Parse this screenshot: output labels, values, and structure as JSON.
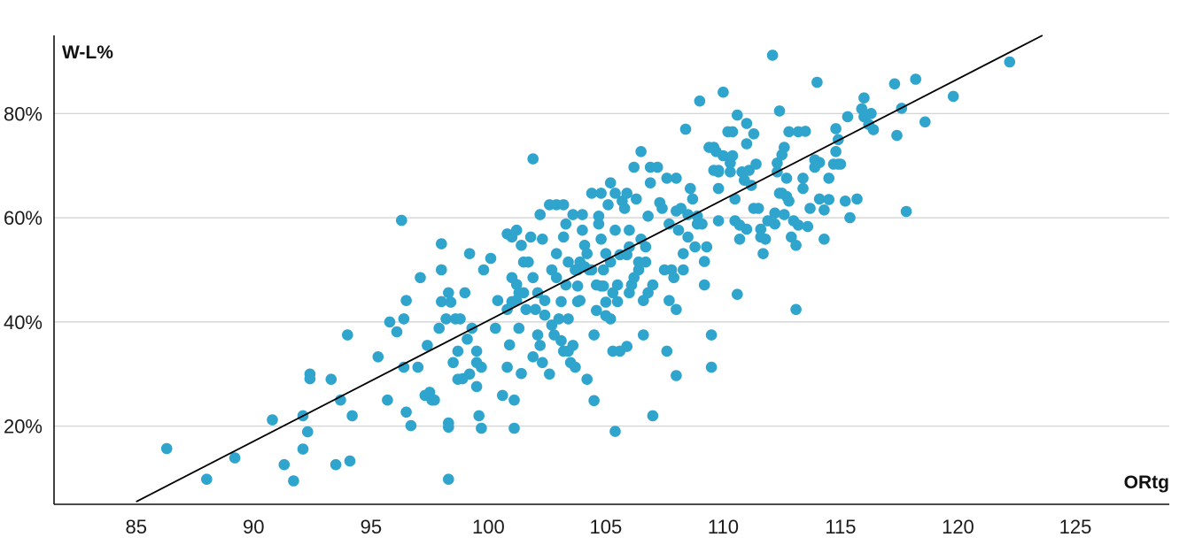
{
  "chart_data": {
    "type": "scatter",
    "xlabel": "ORtg",
    "ylabel": "W-L%",
    "xlim": [
      81.5,
      129
    ],
    "ylim": [
      5,
      95
    ],
    "x_ticks": [
      85,
      90,
      95,
      100,
      105,
      110,
      115,
      120,
      125
    ],
    "y_ticks": [
      20,
      40,
      60,
      80
    ],
    "y_tick_format": "{v}%",
    "grid": "horizontal",
    "point_color": "#2fa4cc",
    "line_color": "#000000",
    "trend_line": {
      "from": [
        85,
        5.5
      ],
      "to": [
        123.6,
        95
      ]
    },
    "points": [
      [
        86.3,
        15.7
      ],
      [
        88.0,
        9.8
      ],
      [
        89.2,
        13.9
      ],
      [
        90.8,
        21.2
      ],
      [
        91.3,
        12.6
      ],
      [
        91.7,
        9.5
      ],
      [
        92.1,
        15.6
      ],
      [
        92.1,
        22.0
      ],
      [
        92.3,
        18.9
      ],
      [
        92.4,
        30.0
      ],
      [
        92.4,
        29.1
      ],
      [
        93.3,
        29.0
      ],
      [
        93.5,
        12.6
      ],
      [
        93.7,
        25.0
      ],
      [
        94.0,
        37.5
      ],
      [
        94.1,
        13.3
      ],
      [
        94.2,
        22.0
      ],
      [
        95.3,
        33.3
      ],
      [
        95.7,
        25.0
      ],
      [
        95.8,
        40.0
      ],
      [
        96.1,
        38.1
      ],
      [
        96.3,
        59.5
      ],
      [
        96.4,
        31.3
      ],
      [
        96.4,
        40.6
      ],
      [
        96.5,
        22.7
      ],
      [
        96.5,
        44.1
      ],
      [
        96.7,
        20.1
      ],
      [
        97.0,
        31.3
      ],
      [
        97.1,
        48.5
      ],
      [
        97.3,
        25.9
      ],
      [
        97.4,
        35.5
      ],
      [
        97.5,
        26.5
      ],
      [
        97.6,
        25.0
      ],
      [
        97.7,
        25.0
      ],
      [
        97.9,
        38.8
      ],
      [
        98.0,
        43.9
      ],
      [
        98.0,
        55.0
      ],
      [
        98.0,
        50.0
      ],
      [
        98.2,
        40.6
      ],
      [
        98.3,
        20.6
      ],
      [
        98.3,
        19.8
      ],
      [
        98.3,
        45.6
      ],
      [
        98.3,
        9.8
      ],
      [
        98.4,
        43.8
      ],
      [
        98.5,
        32.2
      ],
      [
        98.6,
        40.6
      ],
      [
        98.7,
        29.0
      ],
      [
        98.7,
        34.4
      ],
      [
        98.8,
        40.6
      ],
      [
        98.9,
        29.1
      ],
      [
        99.0,
        45.6
      ],
      [
        99.1,
        36.7
      ],
      [
        99.2,
        53.1
      ],
      [
        99.2,
        30.0
      ],
      [
        99.3,
        38.8
      ],
      [
        99.5,
        34.4
      ],
      [
        99.5,
        27.6
      ],
      [
        99.5,
        32.2
      ],
      [
        99.6,
        22.0
      ],
      [
        99.7,
        31.3
      ],
      [
        99.7,
        19.6
      ],
      [
        99.8,
        50.0
      ],
      [
        100.1,
        52.2
      ],
      [
        100.3,
        38.8
      ],
      [
        100.4,
        44.1
      ],
      [
        100.6,
        25.9
      ],
      [
        100.8,
        42.4
      ],
      [
        100.8,
        56.9
      ],
      [
        100.8,
        31.3
      ],
      [
        100.9,
        35.6
      ],
      [
        101.0,
        43.9
      ],
      [
        101.0,
        48.5
      ],
      [
        101.0,
        56.3
      ],
      [
        101.1,
        19.6
      ],
      [
        101.1,
        25.0
      ],
      [
        101.2,
        47.2
      ],
      [
        101.2,
        44.1
      ],
      [
        101.2,
        57.6
      ],
      [
        101.3,
        45.6
      ],
      [
        101.3,
        38.8
      ],
      [
        101.4,
        30.1
      ],
      [
        101.4,
        54.7
      ],
      [
        101.5,
        45.6
      ],
      [
        101.5,
        51.5
      ],
      [
        101.6,
        42.4
      ],
      [
        101.7,
        51.5
      ],
      [
        101.8,
        56.3
      ],
      [
        101.9,
        71.3
      ],
      [
        101.9,
        48.5
      ],
      [
        101.9,
        33.3
      ],
      [
        102.0,
        42.4
      ],
      [
        102.1,
        45.6
      ],
      [
        102.1,
        37.5
      ],
      [
        102.2,
        60.6
      ],
      [
        102.2,
        35.5
      ],
      [
        102.3,
        32.2
      ],
      [
        102.3,
        55.9
      ],
      [
        102.4,
        41.3
      ],
      [
        102.4,
        44.1
      ],
      [
        102.6,
        30.0
      ],
      [
        102.6,
        62.5
      ],
      [
        102.7,
        50.0
      ],
      [
        102.7,
        39.4
      ],
      [
        102.8,
        37.5
      ],
      [
        102.9,
        62.5
      ],
      [
        102.9,
        48.5
      ],
      [
        102.9,
        53.1
      ],
      [
        103.0,
        40.6
      ],
      [
        103.1,
        43.9
      ],
      [
        103.1,
        36.4
      ],
      [
        103.2,
        34.4
      ],
      [
        103.2,
        62.5
      ],
      [
        103.2,
        56.3
      ],
      [
        103.3,
        58.8
      ],
      [
        103.3,
        47.1
      ],
      [
        103.4,
        51.5
      ],
      [
        103.4,
        40.6
      ],
      [
        103.4,
        34.4
      ],
      [
        103.5,
        32.2
      ],
      [
        103.6,
        35.5
      ],
      [
        103.6,
        60.6
      ],
      [
        103.7,
        31.3
      ],
      [
        103.7,
        50.0
      ],
      [
        103.8,
        50.0
      ],
      [
        103.8,
        43.9
      ],
      [
        103.8,
        46.9
      ],
      [
        103.9,
        51.5
      ],
      [
        103.9,
        44.1
      ],
      [
        104.0,
        57.6
      ],
      [
        104.0,
        60.6
      ],
      [
        104.1,
        50.6
      ],
      [
        104.1,
        54.7
      ],
      [
        104.2,
        53.1
      ],
      [
        104.2,
        29.0
      ],
      [
        104.3,
        50.0
      ],
      [
        104.4,
        64.7
      ],
      [
        104.4,
        50.0
      ],
      [
        104.5,
        24.9
      ],
      [
        104.5,
        37.5
      ],
      [
        104.6,
        42.2
      ],
      [
        104.6,
        47.1
      ],
      [
        104.7,
        58.8
      ],
      [
        104.7,
        60.3
      ],
      [
        104.8,
        46.9
      ],
      [
        104.8,
        64.7
      ],
      [
        104.8,
        55.9
      ],
      [
        104.9,
        50.0
      ],
      [
        104.9,
        46.9
      ],
      [
        105.0,
        53.1
      ],
      [
        105.0,
        41.2
      ],
      [
        105.0,
        43.8
      ],
      [
        105.1,
        62.5
      ],
      [
        105.2,
        51.5
      ],
      [
        105.2,
        66.7
      ],
      [
        105.2,
        40.6
      ],
      [
        105.3,
        45.6
      ],
      [
        105.3,
        34.4
      ],
      [
        105.4,
        19.0
      ],
      [
        105.4,
        64.7
      ],
      [
        105.4,
        57.6
      ],
      [
        105.5,
        47.1
      ],
      [
        105.5,
        43.9
      ],
      [
        105.6,
        34.4
      ],
      [
        105.6,
        52.9
      ],
      [
        105.7,
        63.2
      ],
      [
        105.8,
        61.8
      ],
      [
        105.9,
        35.3
      ],
      [
        105.9,
        64.7
      ],
      [
        105.9,
        52.9
      ],
      [
        106.0,
        45.6
      ],
      [
        106.0,
        54.4
      ],
      [
        106.0,
        57.6
      ],
      [
        106.1,
        47.1
      ],
      [
        106.2,
        48.5
      ],
      [
        106.2,
        69.7
      ],
      [
        106.3,
        63.6
      ],
      [
        106.4,
        50.0
      ],
      [
        106.4,
        51.5
      ],
      [
        106.5,
        55.9
      ],
      [
        106.5,
        72.7
      ],
      [
        106.6,
        37.5
      ],
      [
        106.6,
        44.1
      ],
      [
        106.7,
        54.4
      ],
      [
        106.7,
        51.5
      ],
      [
        106.8,
        60.3
      ],
      [
        106.8,
        45.6
      ],
      [
        106.9,
        69.7
      ],
      [
        106.9,
        66.7
      ],
      [
        107.0,
        47.1
      ],
      [
        107.0,
        22.0
      ],
      [
        107.2,
        69.7
      ],
      [
        107.3,
        62.9
      ],
      [
        107.4,
        61.8
      ],
      [
        107.5,
        50.0
      ],
      [
        107.6,
        34.4
      ],
      [
        107.6,
        67.6
      ],
      [
        107.7,
        58.8
      ],
      [
        107.7,
        44.1
      ],
      [
        107.8,
        50.0
      ],
      [
        107.9,
        48.5
      ],
      [
        108.0,
        61.3
      ],
      [
        108.0,
        29.7
      ],
      [
        108.0,
        67.6
      ],
      [
        108.0,
        42.4
      ],
      [
        108.1,
        57.6
      ],
      [
        108.2,
        61.8
      ],
      [
        108.3,
        53.1
      ],
      [
        108.3,
        50.0
      ],
      [
        108.4,
        77.0
      ],
      [
        108.5,
        60.6
      ],
      [
        108.5,
        56.3
      ],
      [
        108.6,
        65.6
      ],
      [
        108.7,
        63.6
      ],
      [
        108.8,
        54.4
      ],
      [
        108.9,
        58.8
      ],
      [
        108.9,
        60.3
      ],
      [
        109.0,
        82.4
      ],
      [
        109.1,
        58.8
      ],
      [
        109.2,
        51.6
      ],
      [
        109.2,
        47.1
      ],
      [
        109.3,
        54.4
      ],
      [
        109.4,
        73.5
      ],
      [
        109.5,
        31.3
      ],
      [
        109.5,
        37.5
      ],
      [
        109.6,
        73.5
      ],
      [
        109.6,
        69.1
      ],
      [
        109.7,
        72.7
      ],
      [
        109.8,
        65.6
      ],
      [
        109.8,
        69.1
      ],
      [
        109.8,
        59.4
      ],
      [
        109.8,
        68.8
      ],
      [
        110.0,
        71.9
      ],
      [
        110.0,
        84.1
      ],
      [
        110.2,
        76.5
      ],
      [
        110.3,
        68.8
      ],
      [
        110.3,
        70.5
      ],
      [
        110.4,
        71.9
      ],
      [
        110.4,
        76.5
      ],
      [
        110.5,
        59.4
      ],
      [
        110.5,
        63.6
      ],
      [
        110.6,
        45.3
      ],
      [
        110.6,
        79.7
      ],
      [
        110.7,
        55.9
      ],
      [
        110.7,
        58.6
      ],
      [
        110.8,
        68.8
      ],
      [
        110.9,
        67.2
      ],
      [
        111.0,
        74.2
      ],
      [
        111.0,
        57.8
      ],
      [
        111.0,
        78.1
      ],
      [
        111.1,
        69.1
      ],
      [
        111.2,
        66.2
      ],
      [
        111.3,
        76.1
      ],
      [
        111.3,
        61.8
      ],
      [
        111.4,
        70.3
      ],
      [
        111.5,
        61.8
      ],
      [
        111.6,
        57.8
      ],
      [
        111.6,
        56.3
      ],
      [
        111.7,
        53.1
      ],
      [
        111.8,
        55.9
      ],
      [
        111.9,
        59.4
      ],
      [
        112.1,
        91.2
      ],
      [
        112.2,
        58.8
      ],
      [
        112.2,
        60.9
      ],
      [
        112.3,
        68.8
      ],
      [
        112.3,
        70.5
      ],
      [
        112.4,
        64.7
      ],
      [
        112.4,
        80.5
      ],
      [
        112.5,
        64.7
      ],
      [
        112.5,
        72.1
      ],
      [
        112.6,
        73.5
      ],
      [
        112.6,
        60.6
      ],
      [
        112.7,
        67.6
      ],
      [
        112.7,
        64.1
      ],
      [
        112.8,
        76.5
      ],
      [
        112.8,
        63.2
      ],
      [
        112.9,
        56.3
      ],
      [
        113.0,
        59.4
      ],
      [
        113.1,
        54.7
      ],
      [
        113.1,
        42.4
      ],
      [
        113.2,
        58.6
      ],
      [
        113.2,
        76.5
      ],
      [
        113.4,
        67.6
      ],
      [
        113.4,
        65.6
      ],
      [
        113.5,
        76.6
      ],
      [
        113.6,
        58.3
      ],
      [
        113.7,
        61.8
      ],
      [
        113.9,
        71.1
      ],
      [
        113.9,
        69.7
      ],
      [
        114.0,
        86.0
      ],
      [
        114.1,
        63.6
      ],
      [
        114.1,
        70.6
      ],
      [
        114.3,
        61.5
      ],
      [
        114.3,
        55.9
      ],
      [
        114.5,
        63.5
      ],
      [
        114.5,
        67.6
      ],
      [
        114.7,
        70.3
      ],
      [
        114.8,
        77.1
      ],
      [
        114.8,
        72.7
      ],
      [
        114.9,
        75.0
      ],
      [
        114.9,
        70.3
      ],
      [
        115.0,
        70.3
      ],
      [
        115.2,
        63.2
      ],
      [
        115.3,
        79.4
      ],
      [
        115.4,
        60.0
      ],
      [
        115.7,
        63.6
      ],
      [
        115.9,
        80.9
      ],
      [
        116.0,
        79.4
      ],
      [
        116.0,
        83.0
      ],
      [
        116.1,
        79.7
      ],
      [
        116.2,
        77.9
      ],
      [
        116.3,
        80.0
      ],
      [
        116.4,
        76.9
      ],
      [
        117.3,
        85.7
      ],
      [
        117.4,
        75.8
      ],
      [
        117.6,
        81.0
      ],
      [
        117.8,
        61.2
      ],
      [
        118.2,
        86.6
      ],
      [
        118.6,
        78.4
      ],
      [
        119.8,
        83.3
      ],
      [
        122.2,
        89.9
      ]
    ]
  }
}
